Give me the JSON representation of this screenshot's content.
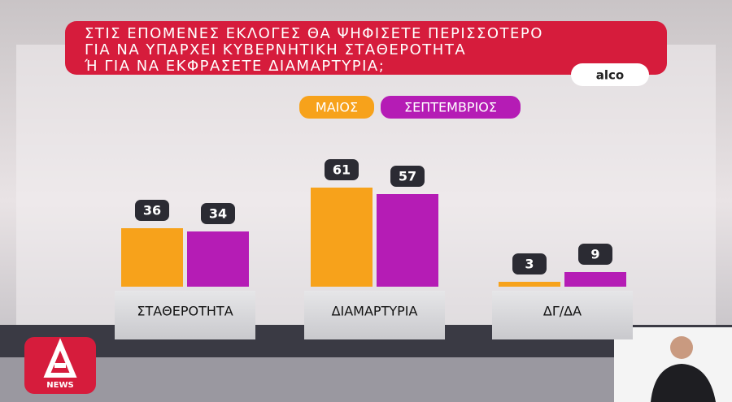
{
  "chart_data": {
    "type": "bar",
    "title_lines": [
      "ΣΤΙΣ ΕΠΟΜΕΝΕΣ ΕΚΛΟΓΕΣ ΘΑ ΨΗΦΙΣΕΤΕ ΠΕΡΙΣΣΟΤΕΡΟ",
      "ΓΙΑ ΝΑ ΥΠΑΡΧΕΙ ΚΥΒΕΡΝΗΤΙΚΗ ΣΤΑΘΕΡΟΤΗΤΑ",
      "Ή ΓΙΑ ΝΑ ΕΚΦΡΑΣΕΤΕ ΔΙΑΜΑΡΤΥΡΙΑ;"
    ],
    "source": "alco",
    "categories": [
      "ΣΤΑΘΕΡΟΤΗΤΑ",
      "ΔΙΑΜΑΡΤΥΡΙΑ",
      "ΔΓ/ΔΑ"
    ],
    "series": [
      {
        "name": "ΜΑΙΟΣ",
        "color": "#f7a21b",
        "values": [
          36,
          61,
          3
        ]
      },
      {
        "name": "ΣΕΠΤΕΜΒΡΙΟΣ",
        "color": "#b51cb5",
        "values": [
          34,
          57,
          9
        ]
      }
    ]
  },
  "logo": {
    "label": "NEWS"
  }
}
